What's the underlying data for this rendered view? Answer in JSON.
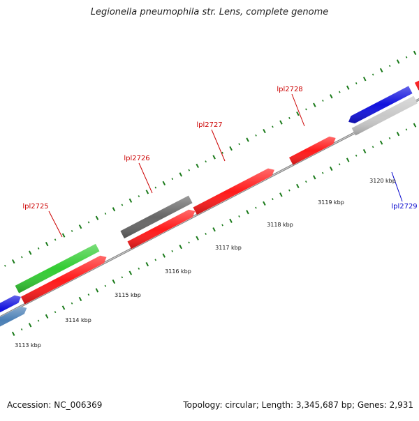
{
  "title": "Legionella pneumophila str. Lens, complete genome",
  "footer": {
    "accession": "Accession: NC_006369",
    "summary": "Topology: circular; Length: 3,345,687 bp; Genes: 2,931"
  },
  "colors": {
    "backbone": "#808080",
    "tick": "#1a7a1a",
    "forward_label": "#cc0000",
    "reverse_label": "#0000cc",
    "red_gene": "#ff1a1a",
    "dark_gray_gene": "#666666",
    "green_gene": "#33cc33",
    "blue_gene": "#1111dd",
    "steel_blue_gene": "#4a7fb5",
    "light_gray_gene": "#c8c8c8"
  },
  "scale_labels": [
    {
      "text": "3113 kbp"
    },
    {
      "text": "3114 kbp"
    },
    {
      "text": "3115 kbp"
    },
    {
      "text": "3116 kbp"
    },
    {
      "text": "3117 kbp"
    },
    {
      "text": "3118 kbp"
    },
    {
      "text": "3119 kbp"
    },
    {
      "text": "3120 kbp"
    }
  ],
  "gene_labels": [
    {
      "text": "lpl2725",
      "strand": "forward"
    },
    {
      "text": "lpl2726",
      "strand": "forward"
    },
    {
      "text": "lpl2727",
      "strand": "forward"
    },
    {
      "text": "lpl2728",
      "strand": "forward"
    },
    {
      "text": "lpl2729",
      "strand": "reverse"
    }
  ]
}
